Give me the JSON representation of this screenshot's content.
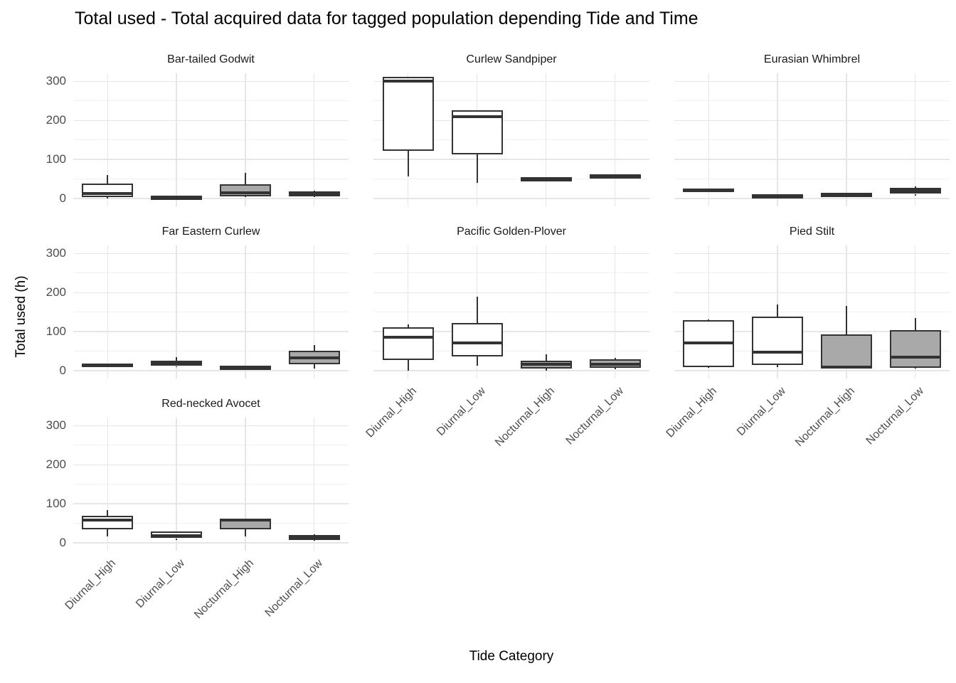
{
  "chart_data": {
    "type": "boxplot",
    "title": "Total used - Total acquired data for tagged population depending Tide and Time",
    "xlabel": "Tide Category",
    "ylabel": "Total used (h)",
    "ylim": [
      0,
      300
    ],
    "yticks": [
      0,
      100,
      200,
      300
    ],
    "minor_gridlines": [
      50,
      150,
      250
    ],
    "grid": "on",
    "legend": "none",
    "categories": [
      "Diurnal_High",
      "Diurnal_Low",
      "Nocturnal_High",
      "Nocturnal_Low"
    ],
    "facets": [
      {
        "name": "Bar-tailed Godwit",
        "boxes": [
          {
            "category": "Diurnal_High",
            "fill": "diurnal",
            "min": 0,
            "q1": 2,
            "median": 12,
            "q3": 37,
            "max": 60
          },
          {
            "category": "Diurnal_Low",
            "fill": "diurnal",
            "min": 0,
            "q1": 1,
            "median": 3,
            "q3": 5,
            "max": 6
          },
          {
            "category": "Nocturnal_High",
            "fill": "nocturnal",
            "min": 2,
            "q1": 5,
            "median": 14,
            "q3": 36,
            "max": 65
          },
          {
            "category": "Nocturnal_Low",
            "fill": "nocturnal",
            "min": 2,
            "q1": 5,
            "median": 12,
            "q3": 17,
            "max": 20
          }
        ]
      },
      {
        "name": "Curlew Sandpiper",
        "boxes": [
          {
            "category": "Diurnal_High",
            "fill": "diurnal",
            "min": 55,
            "q1": 122,
            "median": 300,
            "q3": 312,
            "max": 312
          },
          {
            "category": "Diurnal_Low",
            "fill": "diurnal",
            "min": 39,
            "q1": 112,
            "median": 209,
            "q3": 225,
            "max": 225
          },
          {
            "category": "Nocturnal_High",
            "fill": "nocturnal",
            "min": 47,
            "q1": 49,
            "median": 51,
            "q3": 53,
            "max": 54
          },
          {
            "category": "Nocturnal_Low",
            "fill": "nocturnal",
            "min": 53,
            "q1": 55,
            "median": 57,
            "q3": 59,
            "max": 60
          }
        ]
      },
      {
        "name": "Eurasian Whimbrel",
        "boxes": [
          {
            "category": "Diurnal_High",
            "fill": "diurnal",
            "min": 16,
            "q1": 18,
            "median": 21,
            "q3": 24,
            "max": 25
          },
          {
            "category": "Diurnal_Low",
            "fill": "diurnal",
            "min": 3,
            "q1": 4,
            "median": 6,
            "q3": 8,
            "max": 9
          },
          {
            "category": "Nocturnal_High",
            "fill": "nocturnal",
            "min": 7,
            "q1": 8,
            "median": 10,
            "q3": 12,
            "max": 13
          },
          {
            "category": "Nocturnal_Low",
            "fill": "nocturnal",
            "min": 7,
            "q1": 11,
            "median": 19,
            "q3": 26,
            "max": 30
          }
        ]
      },
      {
        "name": "Far Eastern Curlew",
        "boxes": [
          {
            "category": "Diurnal_High",
            "fill": "diurnal",
            "min": 9,
            "q1": 10,
            "median": 14,
            "q3": 17,
            "max": 18
          },
          {
            "category": "Diurnal_Low",
            "fill": "diurnal",
            "min": 8,
            "q1": 11,
            "median": 20,
            "q3": 25,
            "max": 34
          },
          {
            "category": "Nocturnal_High",
            "fill": "nocturnal",
            "min": 6,
            "q1": 7,
            "median": 9,
            "q3": 11,
            "max": 12
          },
          {
            "category": "Nocturnal_Low",
            "fill": "nocturnal",
            "min": 4,
            "q1": 16,
            "median": 32,
            "q3": 50,
            "max": 65
          }
        ]
      },
      {
        "name": "Pacific Golden-Plover",
        "boxes": [
          {
            "category": "Diurnal_High",
            "fill": "diurnal",
            "min": 0,
            "q1": 27,
            "median": 85,
            "q3": 110,
            "max": 118
          },
          {
            "category": "Diurnal_Low",
            "fill": "diurnal",
            "min": 12,
            "q1": 35,
            "median": 71,
            "q3": 122,
            "max": 190
          },
          {
            "category": "Nocturnal_High",
            "fill": "nocturnal",
            "min": 0,
            "q1": 4,
            "median": 16,
            "q3": 25,
            "max": 42
          },
          {
            "category": "Nocturnal_Low",
            "fill": "nocturnal",
            "min": 2,
            "q1": 6,
            "median": 15,
            "q3": 28,
            "max": 32
          }
        ]
      },
      {
        "name": "Pied Stilt",
        "boxes": [
          {
            "category": "Diurnal_High",
            "fill": "diurnal",
            "min": 6,
            "q1": 8,
            "median": 70,
            "q3": 129,
            "max": 131
          },
          {
            "category": "Diurnal_Low",
            "fill": "diurnal",
            "min": 8,
            "q1": 14,
            "median": 46,
            "q3": 139,
            "max": 170
          },
          {
            "category": "Nocturnal_High",
            "fill": "nocturnal",
            "min": 3,
            "q1": 4,
            "median": 8,
            "q3": 92,
            "max": 165
          },
          {
            "category": "Nocturnal_Low",
            "fill": "nocturnal",
            "min": 5,
            "q1": 7,
            "median": 33,
            "q3": 103,
            "max": 134
          }
        ]
      },
      {
        "name": "Red-necked Avocet",
        "boxes": [
          {
            "category": "Diurnal_High",
            "fill": "diurnal",
            "min": 16,
            "q1": 34,
            "median": 58,
            "q3": 69,
            "max": 83
          },
          {
            "category": "Diurnal_Low",
            "fill": "diurnal",
            "min": 6,
            "q1": 11,
            "median": 17,
            "q3": 28,
            "max": 29
          },
          {
            "category": "Nocturnal_High",
            "fill": "nocturnal",
            "min": 15,
            "q1": 34,
            "median": 57,
            "q3": 60,
            "max": 60
          },
          {
            "category": "Nocturnal_Low",
            "fill": "nocturnal",
            "min": 5,
            "q1": 7,
            "median": 13,
            "q3": 19,
            "max": 21
          }
        ]
      }
    ],
    "colors": {
      "box_border": "#333333",
      "median": "#333333",
      "fill_diurnal": "#FFFFFF",
      "fill_nocturnal": "#A9A9A9",
      "grid_major": "#E6E6E6",
      "grid_minor": "#F2F2F2",
      "tick_label": "#4D4D4D",
      "text": "#000000",
      "background": "#FFFFFF"
    }
  }
}
